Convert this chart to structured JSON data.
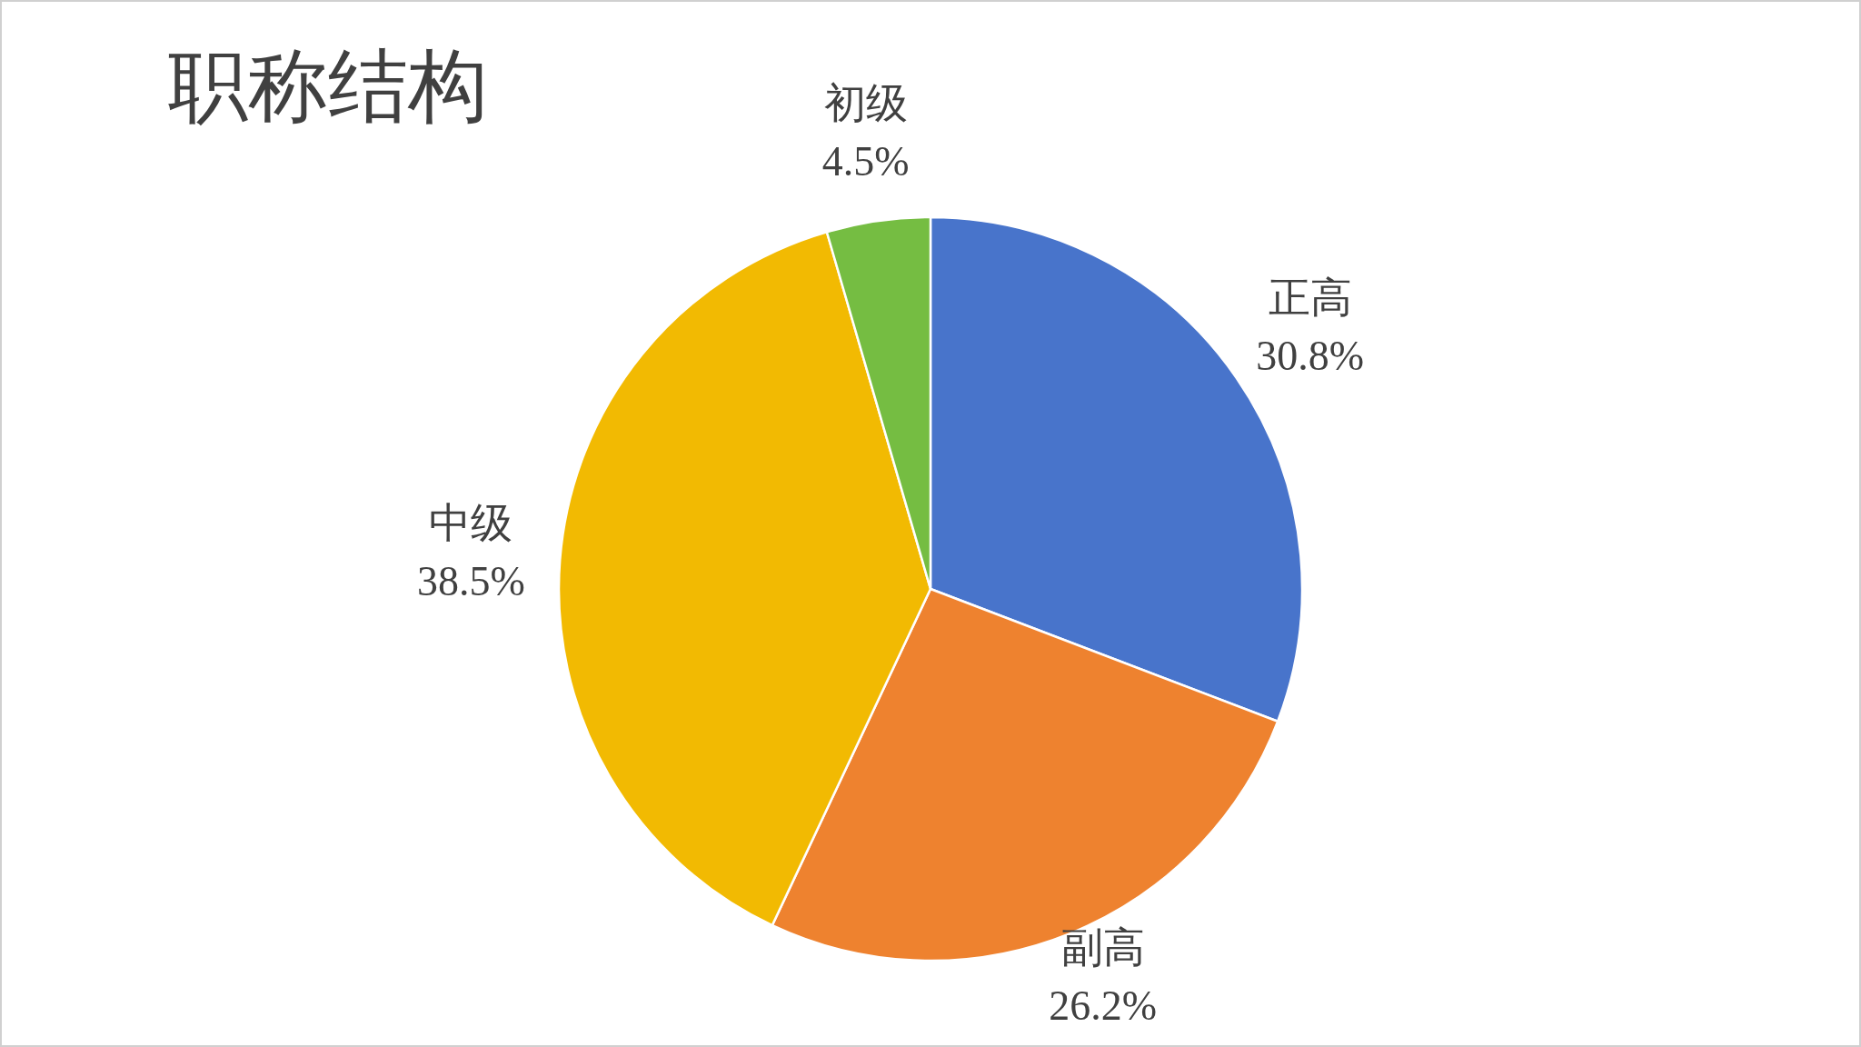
{
  "chart_data": {
    "type": "pie",
    "title": "职称结构",
    "categories": [
      "正高",
      "副高",
      "中级",
      "初级"
    ],
    "values": [
      30.8,
      26.2,
      38.5,
      4.5
    ],
    "colors": [
      "#4874cb",
      "#ee822f",
      "#f2ba02",
      "#75bd42"
    ],
    "value_labels": [
      "30.8%",
      "26.2%",
      "38.5%",
      "4.5%"
    ]
  }
}
